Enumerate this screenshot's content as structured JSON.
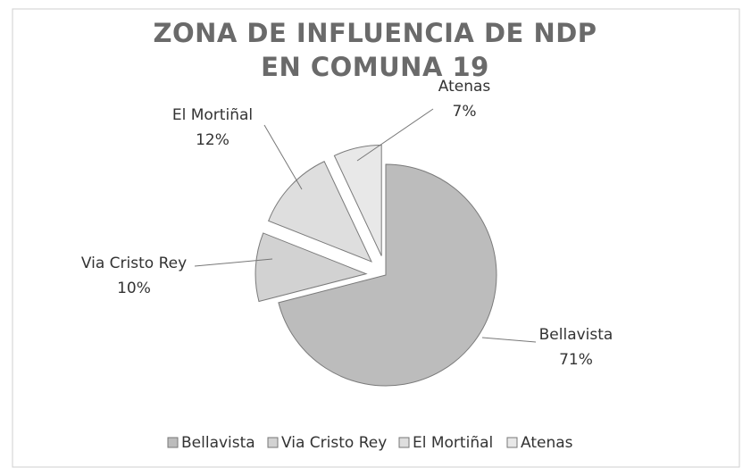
{
  "chart_data": {
    "type": "pie",
    "title": "ZONA DE INFLUENCIA DE NDP EN COMUNA 19",
    "categories": [
      "Bellavista",
      "Via Cristo Rey",
      "El Mortiñal",
      "Atenas"
    ],
    "values": [
      71,
      10,
      12,
      7
    ],
    "value_labels": [
      "71%",
      "10%",
      "12%",
      "7%"
    ],
    "colors": [
      "#bcbcbc",
      "#d2d2d2",
      "#dedede",
      "#e8e8e8"
    ],
    "legend": "bottom"
  }
}
